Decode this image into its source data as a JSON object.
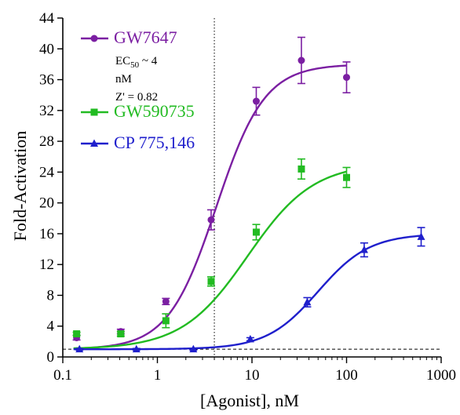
{
  "chart_data": {
    "type": "scatter",
    "xlabel": "[Agonist], nM",
    "ylabel": "Fold-Activation",
    "x_scale": "log",
    "xlim": [
      0.1,
      1000
    ],
    "ylim": [
      0,
      44
    ],
    "x_ticks": [
      0.1,
      1,
      10,
      100,
      1000
    ],
    "x_tick_labels": [
      "0.1",
      "1",
      "10",
      "100",
      "1000"
    ],
    "y_ticks": [
      0,
      4,
      8,
      12,
      16,
      20,
      24,
      28,
      32,
      36,
      40,
      44
    ],
    "y_tick_labels": [
      "0",
      "4",
      "8",
      "12",
      "16",
      "20",
      "24",
      "28",
      "32",
      "36",
      "40",
      "44"
    ],
    "grid": false,
    "legend_position": "top-left",
    "reference_lines": {
      "vertical_x": 4,
      "horizontal_y": 1
    },
    "annotation": {
      "ec50_prefix": "EC",
      "ec50_sub": "50",
      "ec50_suffix": " ~ 4",
      "ec50_unit": "nM",
      "z_prime": "Z' =  0.82"
    },
    "series": [
      {
        "name": "GW7647",
        "color": "#7b1fa2",
        "marker": "circle",
        "x": [
          0.14,
          0.41,
          1.23,
          3.7,
          11.1,
          33.3,
          100
        ],
        "y": [
          2.5,
          3.3,
          7.2,
          17.8,
          33.2,
          38.5,
          36.3
        ],
        "err": [
          0.3,
          0.3,
          0.4,
          1.3,
          1.8,
          3.0,
          2.0
        ],
        "fit": {
          "bottom": 1.0,
          "top": 38,
          "ec50": 4.2,
          "hill": 1.7
        }
      },
      {
        "name": "GW590735",
        "color": "#22bb22",
        "marker": "square",
        "x": [
          0.14,
          0.41,
          1.23,
          3.7,
          11.1,
          33.3,
          100
        ],
        "y": [
          3.0,
          3.0,
          4.7,
          9.8,
          16.2,
          24.4,
          23.3
        ],
        "err": [
          0.2,
          0.3,
          0.9,
          0.6,
          1.0,
          1.3,
          1.3
        ],
        "fit": {
          "bottom": 1.0,
          "top": 25.2,
          "ec50": 9.0,
          "hill": 1.25
        }
      },
      {
        "name": "CP 775,146",
        "color": "#1f1fcc",
        "marker": "triangle",
        "x": [
          0.15,
          0.6,
          2.4,
          9.6,
          38.4,
          153.6,
          614.4
        ],
        "y": [
          1.0,
          1.0,
          1.0,
          2.3,
          7.1,
          13.9,
          15.6
        ],
        "err": [
          0.1,
          0.1,
          0.1,
          0.2,
          0.6,
          0.9,
          1.2
        ],
        "fit": {
          "bottom": 1.0,
          "top": 16.0,
          "ec50": 50,
          "hill": 1.6
        }
      }
    ]
  }
}
